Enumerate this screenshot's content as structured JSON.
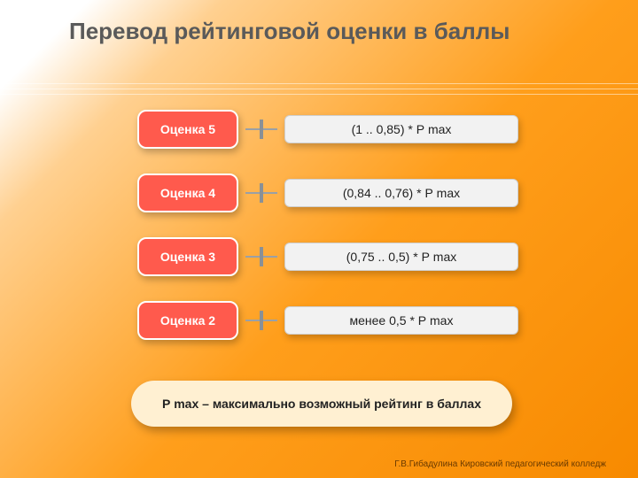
{
  "title": "Перевод рейтинговой оценки в баллы",
  "colors": {
    "badge_bg": "#ff5a4d",
    "badge_border": "#ffffff",
    "badge_text": "#ffffff",
    "formula_bg": "#f2f2f2",
    "formula_text": "#222222",
    "legend_bg": "#fff0d2",
    "title_color": "#5a5a5a"
  },
  "rows": [
    {
      "grade": "Оценка 5",
      "formula": "(1 .. 0,85) * Р max"
    },
    {
      "grade": "Оценка 4",
      "formula": "(0,84 .. 0,76) * Р max"
    },
    {
      "grade": "Оценка 3",
      "formula": "(0,75 .. 0,5) * Р max"
    },
    {
      "grade": "Оценка 2",
      "formula": "менее  0,5 * Р max"
    }
  ],
  "legend": "Р max – максимально возможный рейтинг в баллах",
  "footer": "Г.В.Гибадулина  Кировский педагогический колледж"
}
